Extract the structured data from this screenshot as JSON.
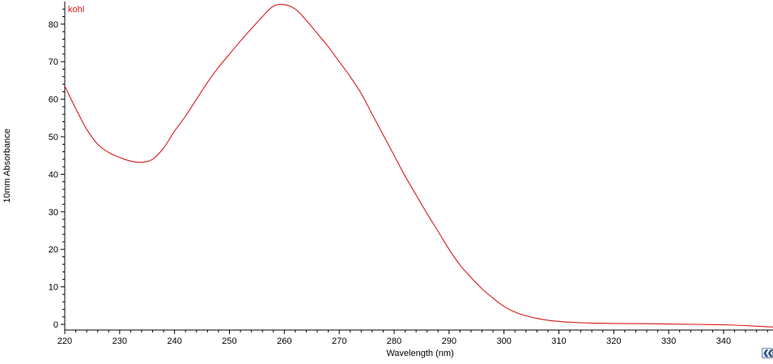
{
  "chart_data": {
    "type": "line",
    "title": "",
    "xlabel": "Wavelength (nm)",
    "ylabel": "10mm Absorbance",
    "xlim": [
      220,
      349
    ],
    "ylim": [
      -1.5,
      86
    ],
    "x_ticks": [
      220,
      230,
      240,
      250,
      260,
      270,
      280,
      290,
      300,
      310,
      320,
      330,
      340
    ],
    "y_ticks": [
      0,
      10,
      20,
      30,
      40,
      50,
      60,
      70,
      80
    ],
    "grid": false,
    "legend": "top-left",
    "series": [
      {
        "name": "kohl",
        "color": "#d81a1a",
        "x": [
          220,
          222,
          224,
          226,
          228,
          230,
          232,
          234,
          236,
          238,
          240,
          242,
          244,
          246,
          248,
          250,
          252,
          254,
          256,
          258,
          260,
          262,
          264,
          266,
          268,
          270,
          272,
          274,
          276,
          278,
          280,
          282,
          284,
          286,
          288,
          290,
          292,
          294,
          296,
          298,
          300,
          302,
          304,
          306,
          308,
          310,
          312,
          314,
          316,
          318,
          320,
          325,
          330,
          335,
          340,
          345,
          349
        ],
        "y": [
          63.5,
          57.5,
          52,
          48,
          45.8,
          44.5,
          43.5,
          43.2,
          44,
          47,
          51.5,
          55.5,
          60,
          64.5,
          68.5,
          72,
          75.5,
          78.8,
          82,
          84.8,
          85.2,
          84,
          81,
          77.5,
          74,
          70,
          66,
          61.5,
          56,
          50.5,
          45,
          39.5,
          34.5,
          29.5,
          24.8,
          20,
          15.8,
          12.5,
          9.5,
          7,
          4.8,
          3.3,
          2.3,
          1.6,
          1.1,
          0.8,
          0.6,
          0.45,
          0.35,
          0.3,
          0.25,
          0.2,
          0.1,
          0,
          -0.1,
          -0.4,
          -0.7
        ]
      }
    ]
  },
  "ui": {
    "collapse_label": "❮❮"
  }
}
